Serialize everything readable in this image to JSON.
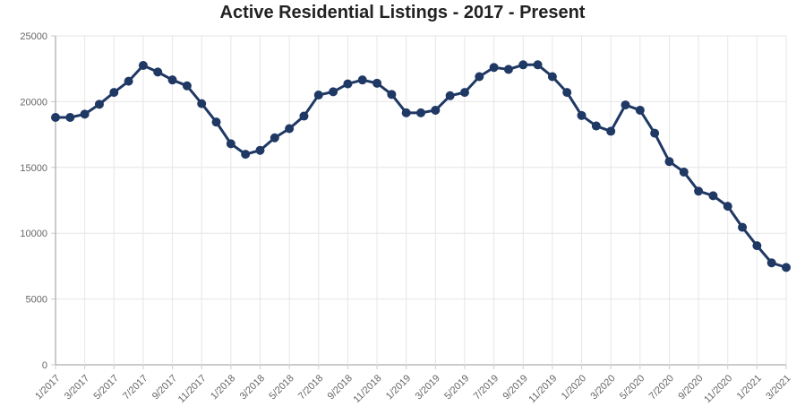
{
  "chart_data": {
    "type": "line",
    "title": "Active Residential Listings - 2017 - Present",
    "xlabel": "",
    "ylabel": "",
    "ylim": [
      0,
      25000
    ],
    "y_ticks": [
      "0",
      "5000",
      "10000",
      "15000",
      "20000",
      "25000"
    ],
    "x_ticks": [
      "1/2017",
      "3/2017",
      "5/2017",
      "7/2017",
      "9/2017",
      "11/2017",
      "1/2018",
      "3/2018",
      "5/2018",
      "7/2018",
      "9/2018",
      "11/2018",
      "1/2019",
      "3/2019",
      "5/2019",
      "7/2019",
      "9/2019",
      "11/2019",
      "1/2020",
      "3/2020",
      "5/2020",
      "7/2020",
      "9/2020",
      "11/2020",
      "1/2021",
      "3/2021"
    ],
    "grid": true,
    "legend": "none",
    "line_color": "#1f3864",
    "x": [
      "1/2017",
      "2/2017",
      "3/2017",
      "4/2017",
      "5/2017",
      "6/2017",
      "7/2017",
      "8/2017",
      "9/2017",
      "10/2017",
      "11/2017",
      "12/2017",
      "1/2018",
      "2/2018",
      "3/2018",
      "4/2018",
      "5/2018",
      "6/2018",
      "7/2018",
      "8/2018",
      "9/2018",
      "10/2018",
      "11/2018",
      "12/2018",
      "1/2019",
      "2/2019",
      "3/2019",
      "4/2019",
      "5/2019",
      "6/2019",
      "7/2019",
      "8/2019",
      "9/2019",
      "10/2019",
      "11/2019",
      "12/2019",
      "1/2020",
      "2/2020",
      "3/2020",
      "4/2020",
      "5/2020",
      "6/2020",
      "7/2020",
      "8/2020",
      "9/2020",
      "10/2020",
      "11/2020",
      "12/2020",
      "1/2021",
      "2/2021",
      "3/2021"
    ],
    "series": [
      {
        "values": [
          18800,
          18800,
          19050,
          19800,
          20700,
          21550,
          22750,
          22250,
          21650,
          21200,
          19850,
          18450,
          16800,
          16000,
          16300,
          17250,
          17950,
          18900,
          20500,
          20750,
          21350,
          21650,
          21400,
          20550,
          19150,
          19150,
          19350,
          20450,
          20700,
          21900,
          22600,
          22450,
          22800,
          22800,
          21900,
          20700,
          18950,
          18150,
          17750,
          19750,
          19350,
          17600,
          15450,
          14650,
          13200,
          12850,
          12050,
          10450,
          9050,
          7750,
          7400
        ]
      }
    ]
  }
}
